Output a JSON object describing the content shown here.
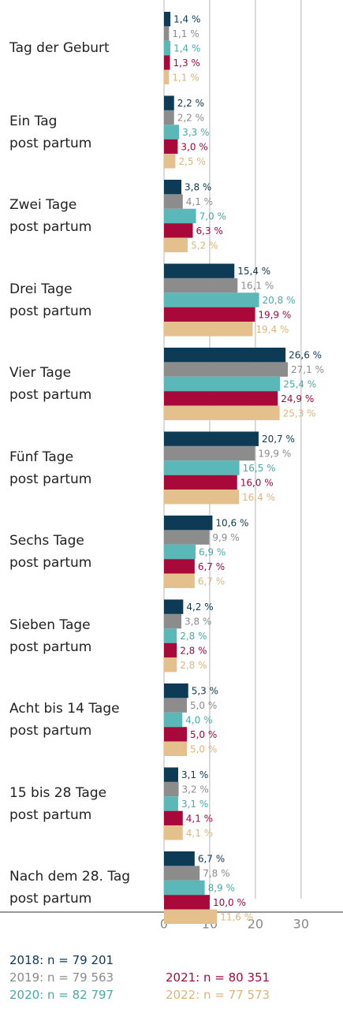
{
  "chart_data": {
    "type": "hbar",
    "categories": [
      "Tag der Geburt",
      "Ein Tag\npost partum",
      "Zwei Tage\npost partum",
      "Drei Tage\npost partum",
      "Vier Tage\npost partum",
      "Fünf Tage\npost partum",
      "Sechs Tage\npost partum",
      "Sieben Tage\npost partum",
      "Acht bis 14 Tage\npost partum",
      "15 bis 28 Tage\npost partum",
      "Nach dem 28. Tag\npost partum"
    ],
    "series": [
      {
        "name": "2018: n = 79 201",
        "color": "#0d3a55",
        "label_color": "#0d3a55",
        "values": [
          1.4,
          2.2,
          3.8,
          15.4,
          26.6,
          20.7,
          10.6,
          4.2,
          5.3,
          3.1,
          6.7
        ],
        "value_labels": [
          "1,4 %",
          "2,2 %",
          "3,8 %",
          "15,4 %",
          "26,6 %",
          "20,7 %",
          "10,6 %",
          "4,2 %",
          "5,3 %",
          "3,1 %",
          "6,7 %"
        ]
      },
      {
        "name": "2019: n = 79 563",
        "color": "#8c8c8c",
        "label_color": "#8c8c8c",
        "values": [
          1.1,
          2.2,
          4.1,
          16.1,
          27.1,
          19.9,
          9.9,
          3.8,
          5.0,
          3.2,
          7.8
        ],
        "value_labels": [
          "1,1 %",
          "2,2 %",
          "4,1 %",
          "16,1 %",
          "27,1 %",
          "19,9 %",
          "9,9 %",
          "3,8 %",
          "5,0 %",
          "3,2 %",
          "7,8 %"
        ]
      },
      {
        "name": "2020: n = 82 797",
        "color": "#5bb8b8",
        "label_color": "#4aa9a9",
        "values": [
          1.4,
          3.3,
          7.0,
          20.8,
          25.4,
          16.5,
          6.9,
          2.8,
          4.0,
          3.1,
          8.9
        ],
        "value_labels": [
          "1,4 %",
          "3,3 %",
          "7,0 %",
          "20,8 %",
          "25,4 %",
          "16,5 %",
          "6,9 %",
          "2,8 %",
          "4,0 %",
          "3,1 %",
          "8,9 %"
        ]
      },
      {
        "name": "2021: n = 80 351",
        "color": "#a8083a",
        "label_color": "#a8083a",
        "values": [
          1.3,
          3.0,
          6.3,
          19.9,
          24.9,
          16.0,
          6.7,
          2.8,
          5.0,
          4.1,
          10.0
        ],
        "value_labels": [
          "1,3 %",
          "3,0 %",
          "6,3 %",
          "19,9 %",
          "24,9 %",
          "16,0 %",
          "6,7 %",
          "2,8 %",
          "5,0 %",
          "4,1 %",
          "10,0 %"
        ]
      },
      {
        "name": "2022: n = 77 573",
        "color": "#e3c08c",
        "label_color": "#dcb57c",
        "values": [
          1.1,
          2.5,
          5.2,
          19.4,
          25.3,
          16.4,
          6.7,
          2.8,
          5.0,
          4.1,
          11.6
        ],
        "value_labels": [
          "1,1 %",
          "2,5 %",
          "5,2 %",
          "19,4 %",
          "25,3 %",
          "16,4 %",
          "6,7 %",
          "2,8 %",
          "5,0 %",
          "4,1 %",
          "11,6 %"
        ]
      }
    ],
    "xlim": [
      0,
      39
    ],
    "xticks": [
      0,
      10,
      20,
      30
    ],
    "grid": true
  }
}
